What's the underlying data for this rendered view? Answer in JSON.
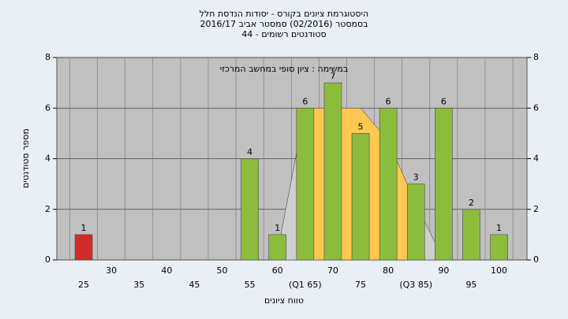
{
  "chart_data": {
    "type": "bar",
    "title": "היסטוגרמת ציונים בקורס - יסודות הנדסת חלל",
    "subtitles": [
      "בסמסטר (02/2016) סמסטר אביב 2016/17",
      "סטודנטים רשומים - 44"
    ],
    "annotation": "במשימה : ציון סופי במחשב המרכזי",
    "x_label": "טווח ציונים",
    "y_label": "מספר סטודנטים",
    "categories": [
      "25",
      "30",
      "35",
      "40",
      "45",
      "50",
      "55",
      "60",
      "(Q1 65)",
      "70",
      "75",
      "80",
      "(Q3 85)",
      "90",
      "95",
      "100"
    ],
    "values": [
      1,
      0,
      0,
      0,
      0,
      0,
      4,
      1,
      6,
      7,
      5,
      6,
      3,
      6,
      2,
      1
    ],
    "colors": [
      "#d42a2a",
      "#8cbc3c",
      "#8cbc3c",
      "#8cbc3c",
      "#8cbc3c",
      "#8cbc3c",
      "#8cbc3c",
      "#8cbc3c",
      "#8cbc3c",
      "#8cbc3c",
      "#8cbc3c",
      "#8cbc3c",
      "#8cbc3c",
      "#8cbc3c",
      "#8cbc3c",
      "#8cbc3c"
    ],
    "distribution": [
      {
        "color": "#cfcfcf",
        "values": [
          null,
          null,
          null,
          null,
          null,
          null,
          null,
          0.3,
          6,
          null,
          null,
          null,
          2.2,
          0,
          null,
          null
        ]
      },
      {
        "color": "#ffc850",
        "values": [
          null,
          null,
          null,
          null,
          null,
          null,
          null,
          null,
          6,
          6,
          6,
          4.7,
          2.2,
          null,
          null,
          null
        ]
      }
    ],
    "ylim": [
      0,
      8
    ],
    "yticks": [
      0,
      2,
      4,
      6,
      8
    ],
    "grid": true,
    "plot_color": "#c0c0c0"
  }
}
